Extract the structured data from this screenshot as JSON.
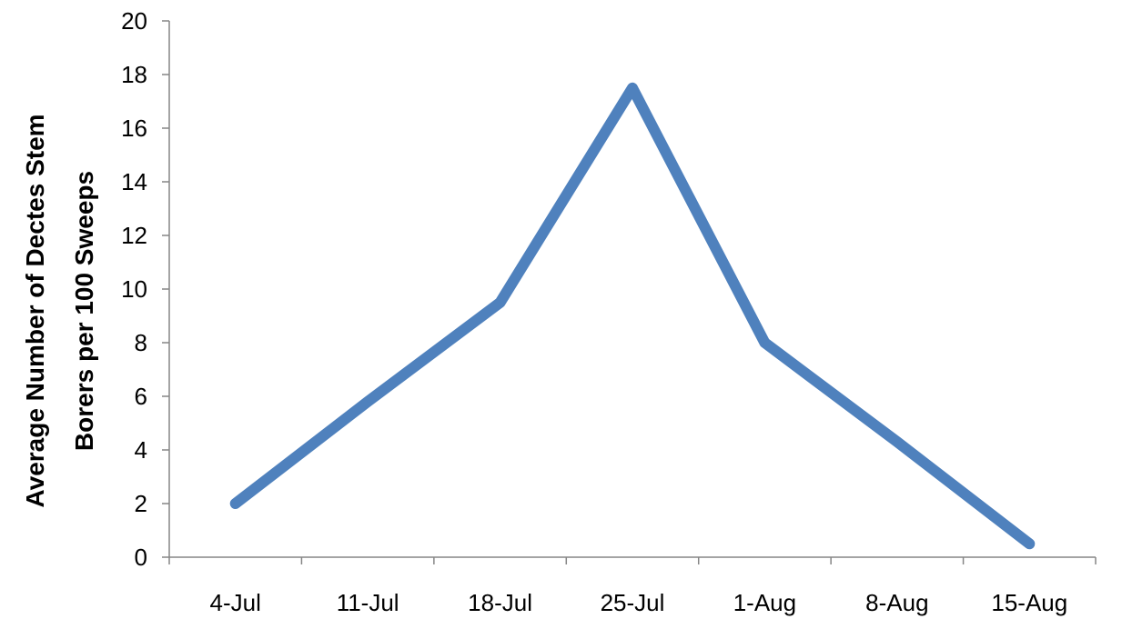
{
  "chart_data": {
    "type": "line",
    "x": [
      "4-Jul",
      "11-Jul",
      "18-Jul",
      "25-Jul",
      "1-Aug",
      "8-Aug",
      "15-Aug"
    ],
    "categories": [
      "4-Jul",
      "11-Jul",
      "18-Jul",
      "25-Jul",
      "1-Aug",
      "8-Aug",
      "15-Aug"
    ],
    "series": [
      {
        "values": [
          2,
          5.8,
          9.5,
          17.5,
          8,
          4.3,
          0.5
        ]
      }
    ],
    "title": "",
    "xlabel": "",
    "ylabel_lines": [
      "Average Number of Dectes Stem",
      "Borers per 100 Sweeps"
    ],
    "ylim": [
      0,
      20
    ],
    "yticks": [
      0,
      2,
      4,
      6,
      8,
      10,
      12,
      14,
      16,
      18,
      20
    ],
    "grid": false,
    "legend": "none",
    "colors": {
      "series": "#4F81BD",
      "axis": "#868686"
    }
  }
}
